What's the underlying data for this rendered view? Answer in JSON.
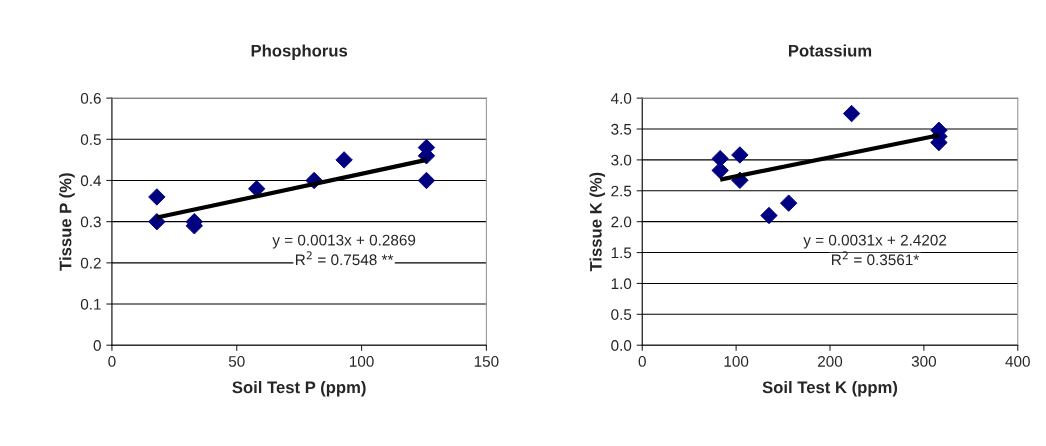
{
  "chart_data": [
    {
      "type": "scatter",
      "title": "Phosphorus",
      "xlabel": "Soil Test P (ppm)",
      "ylabel": "Tissue P (%)",
      "xlim": [
        0,
        150
      ],
      "xticks": [
        0,
        50,
        100,
        150
      ],
      "ylim": [
        0,
        0.6
      ],
      "yticks": [
        0,
        0.1,
        0.2,
        0.3,
        0.4,
        0.5,
        0.6
      ],
      "grid": "y",
      "series": [
        {
          "marker": "diamond",
          "color": "#000080",
          "x": [
            18,
            18,
            33,
            33,
            58,
            81,
            93,
            126,
            126,
            126
          ],
          "values": [
            0.36,
            0.3,
            0.3,
            0.29,
            0.38,
            0.4,
            0.45,
            0.48,
            0.46,
            0.4
          ]
        },
        {
          "type": "line",
          "marker": "none",
          "color": "#000000",
          "x": [
            18,
            126
          ],
          "values": [
            0.31,
            0.45
          ]
        }
      ],
      "annotations": [
        "y = 0.0013x + 0.2869",
        "R$^{2}$ = 0.7548 **"
      ]
    },
    {
      "type": "scatter",
      "title": "Potassium",
      "xlabel": "Soil Test K (ppm)",
      "ylabel": "Tissue K (%)",
      "xlim": [
        0,
        400
      ],
      "xticks": [
        0,
        100,
        200,
        300,
        400
      ],
      "ylim": [
        0,
        4
      ],
      "yticks": [
        {
          "value": 0,
          "label": "0.0"
        },
        0.5,
        {
          "value": 1,
          "label": "1.0"
        },
        1.5,
        {
          "value": 2,
          "label": "2.0"
        },
        2.5,
        {
          "value": 3,
          "label": "3.0"
        },
        3.5,
        {
          "value": 4,
          "label": "4.0"
        }
      ],
      "grid": "y",
      "series": [
        {
          "marker": "diamond",
          "color": "#000080",
          "x": [
            83,
            83,
            104,
            104,
            135,
            156,
            223,
            316,
            316,
            316
          ],
          "values": [
            3.02,
            2.83,
            3.08,
            2.67,
            2.1,
            2.3,
            3.75,
            3.48,
            3.28,
            3.38
          ]
        },
        {
          "type": "line",
          "marker": "none",
          "color": "#000000",
          "x": [
            83,
            316
          ],
          "values": [
            2.68,
            3.4
          ]
        }
      ],
      "annotations": [
        "y = 0.0031x + 2.4202",
        "R$^{2}$ = 0.3561*"
      ]
    }
  ]
}
